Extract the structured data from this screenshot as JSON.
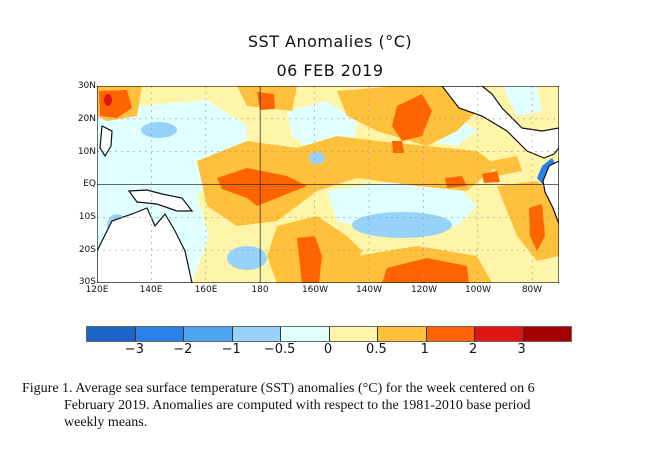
{
  "title": "SST Anomalies (°C)",
  "date": "06 FEB 2019",
  "map": {
    "lat_labels": [
      "30N",
      "20N",
      "10N",
      "EQ",
      "10S",
      "20S",
      "30S"
    ],
    "lon_labels": [
      "120E",
      "140E",
      "160E",
      "180",
      "160W",
      "140W",
      "120W",
      "100W",
      "80W"
    ],
    "region": "Tropical Pacific Ocean, 30N–30S, 120E–70W"
  },
  "colorbar": {
    "ticks": [
      "−3",
      "−2",
      "−1",
      "−0.5",
      "0",
      "0.5",
      "1",
      "2",
      "3"
    ],
    "colors": [
      "#1a64c8",
      "#2a82e8",
      "#50a5f0",
      "#96d2fa",
      "#e0ffff",
      "#fff5a8",
      "#ffc03c",
      "#ff6400",
      "#e11414",
      "#a50000"
    ]
  },
  "caption": {
    "line1": "Figure 1. Average sea surface temperature (SST) anomalies (°C) for the week centered on 6",
    "line2": "February 2019.  Anomalies are computed with respect to the 1981-2010 base period",
    "line3": "weekly means."
  }
}
